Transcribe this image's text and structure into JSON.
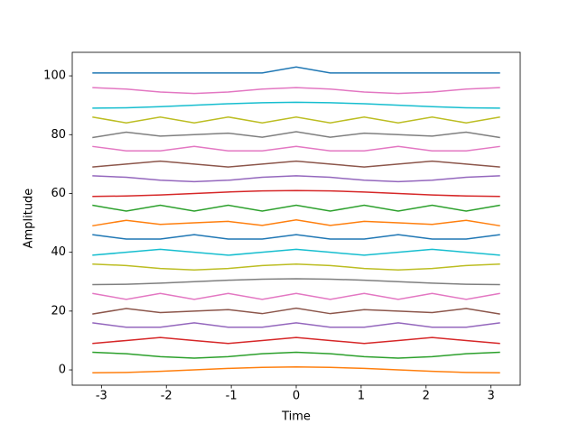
{
  "chart_data": {
    "type": "line",
    "xlabel": "Time",
    "ylabel": "Amplitude",
    "x": [
      -3.14,
      -2.618,
      -2.094,
      -1.571,
      -1.047,
      -0.524,
      0,
      0.524,
      1.047,
      1.571,
      2.094,
      2.618,
      3.14
    ],
    "xlim": [
      -3.45,
      3.45
    ],
    "xticks": [
      -3,
      -2,
      -1,
      0,
      1,
      2,
      3
    ],
    "ylim": [
      -5.2,
      108
    ],
    "yticks": [
      0,
      20,
      40,
      60,
      80,
      100
    ],
    "series": [
      {
        "color": "#ff7f0e",
        "values": [
          -1,
          -0.866,
          -0.5,
          0,
          0.5,
          0.866,
          1,
          0.866,
          0.5,
          0,
          -0.5,
          -0.866,
          -1
        ]
      },
      {
        "color": "#2ca02c",
        "values": [
          6,
          5.5,
          4.5,
          4,
          4.5,
          5.5,
          6,
          5.5,
          4.5,
          4,
          4.5,
          5.5,
          6
        ]
      },
      {
        "color": "#d62728",
        "values": [
          9,
          10,
          11,
          10,
          9,
          10,
          11,
          10,
          9,
          10,
          11,
          10,
          9
        ]
      },
      {
        "color": "#9467bd",
        "values": [
          16,
          14.5,
          14.5,
          16,
          14.5,
          14.5,
          16,
          14.5,
          14.5,
          16,
          14.5,
          14.5,
          16
        ]
      },
      {
        "color": "#8c564b",
        "values": [
          19,
          20.866,
          19.5,
          20,
          20.5,
          19.134,
          21,
          19.134,
          20.5,
          20,
          19.5,
          20.866,
          19
        ]
      },
      {
        "color": "#e377c2",
        "values": [
          26,
          24,
          26,
          24,
          26,
          24,
          26,
          24,
          26,
          24,
          26,
          24,
          26
        ]
      },
      {
        "color": "#7f7f7f",
        "values": [
          29,
          29.134,
          29.5,
          30,
          30.5,
          30.866,
          31,
          30.866,
          30.5,
          30,
          29.5,
          29.134,
          29
        ]
      },
      {
        "color": "#bcbd22",
        "values": [
          36,
          35.5,
          34.5,
          34,
          34.5,
          35.5,
          36,
          35.5,
          34.5,
          34,
          34.5,
          35.5,
          36
        ]
      },
      {
        "color": "#17becf",
        "values": [
          39,
          40,
          41,
          40,
          39,
          40,
          41,
          40,
          39,
          40,
          41,
          40,
          39
        ]
      },
      {
        "color": "#1f77b4",
        "values": [
          46,
          44.5,
          44.5,
          46,
          44.5,
          44.5,
          46,
          44.5,
          44.5,
          46,
          44.5,
          44.5,
          46
        ]
      },
      {
        "color": "#ff7f0e",
        "values": [
          49,
          50.866,
          49.5,
          50,
          50.5,
          49.134,
          51,
          49.134,
          50.5,
          50,
          49.5,
          50.866,
          49
        ]
      },
      {
        "color": "#2ca02c",
        "values": [
          56,
          54,
          56,
          54,
          56,
          54,
          56,
          54,
          56,
          54,
          56,
          54,
          56
        ]
      },
      {
        "color": "#d62728",
        "values": [
          59,
          59.134,
          59.5,
          60,
          60.5,
          60.866,
          61,
          60.866,
          60.5,
          60,
          59.5,
          59.134,
          59
        ]
      },
      {
        "color": "#9467bd",
        "values": [
          66,
          65.5,
          64.5,
          64,
          64.5,
          65.5,
          66,
          65.5,
          64.5,
          64,
          64.5,
          65.5,
          66
        ]
      },
      {
        "color": "#8c564b",
        "values": [
          69,
          70,
          71,
          70,
          69,
          70,
          71,
          70,
          69,
          70,
          71,
          70,
          69
        ]
      },
      {
        "color": "#e377c2",
        "values": [
          76,
          74.5,
          74.5,
          76,
          74.5,
          74.5,
          76,
          74.5,
          74.5,
          76,
          74.5,
          74.5,
          76
        ]
      },
      {
        "color": "#7f7f7f",
        "values": [
          79,
          80.866,
          79.5,
          80,
          80.5,
          79.134,
          81,
          79.134,
          80.5,
          80,
          79.5,
          80.866,
          79
        ]
      },
      {
        "color": "#bcbd22",
        "values": [
          86,
          84,
          86,
          84,
          86,
          84,
          86,
          84,
          86,
          84,
          86,
          84,
          86
        ]
      },
      {
        "color": "#17becf",
        "values": [
          89,
          89.134,
          89.5,
          90,
          90.5,
          90.866,
          91,
          90.866,
          90.5,
          90,
          89.5,
          89.134,
          89
        ]
      },
      {
        "color": "#e377c2",
        "values": [
          96,
          95.5,
          94.5,
          94,
          94.5,
          95.5,
          96,
          95.5,
          94.5,
          94,
          94.5,
          95.5,
          96
        ]
      },
      {
        "color": "#1f77b4",
        "values": [
          101,
          101,
          101,
          101,
          101,
          101,
          103,
          101,
          101,
          101,
          101,
          101,
          101
        ]
      }
    ]
  }
}
